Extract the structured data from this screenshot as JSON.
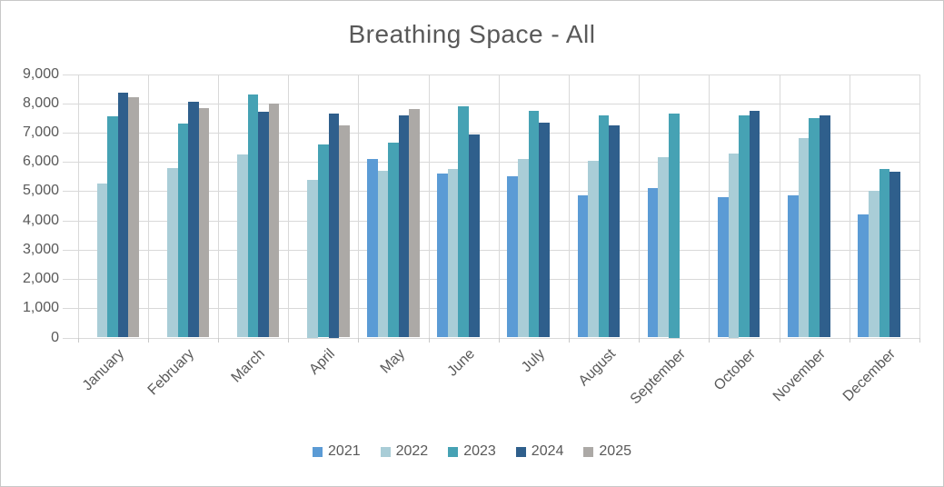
{
  "chart_data": {
    "type": "bar",
    "title": "Breathing Space - All",
    "categories": [
      "January",
      "February",
      "March",
      "April",
      "May",
      "June",
      "July",
      "August",
      "September",
      "October",
      "November",
      "December"
    ],
    "series": [
      {
        "name": "2021",
        "color": "#5B9BD5",
        "values": [
          null,
          null,
          null,
          null,
          6100,
          5600,
          5500,
          4850,
          5100,
          4800,
          4850,
          4200
        ]
      },
      {
        "name": "2022",
        "color": "#A9CDD7",
        "values": [
          5250,
          5800,
          6250,
          5400,
          5700,
          5750,
          6100,
          6050,
          6150,
          6300,
          6800,
          5000
        ]
      },
      {
        "name": "2023",
        "color": "#46A2B4",
        "values": [
          7550,
          7300,
          8300,
          6600,
          6650,
          7900,
          7750,
          7600,
          7650,
          7600,
          7500,
          5750
        ]
      },
      {
        "name": "2024",
        "color": "#2F5F8C",
        "values": [
          8350,
          8050,
          7700,
          7650,
          7600,
          6950,
          7350,
          7250,
          null,
          7750,
          7600,
          5650
        ]
      },
      {
        "name": "2025",
        "color": "#ACA9A6",
        "values": [
          8200,
          7850,
          8000,
          7250,
          7800,
          null,
          null,
          null,
          null,
          null,
          null,
          null
        ]
      }
    ],
    "y_axis": {
      "min": 0,
      "max": 9000,
      "step": 1000,
      "tick_labels": [
        "0",
        "1,000",
        "2,000",
        "3,000",
        "4,000",
        "5,000",
        "6,000",
        "7,000",
        "8,000",
        "9,000"
      ]
    },
    "x_axis": {
      "label_rotation_deg": -45
    },
    "legend": {
      "position": "bottom"
    },
    "grid": {
      "horizontal": true,
      "vertical_category_separators": true
    }
  }
}
